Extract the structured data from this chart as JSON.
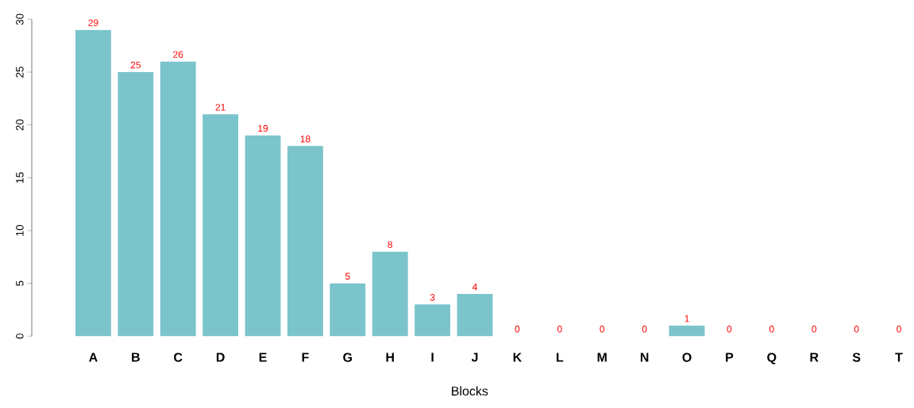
{
  "chart_data": {
    "type": "bar",
    "xlabel": "Blocks",
    "categories": [
      "A",
      "B",
      "C",
      "D",
      "E",
      "F",
      "G",
      "H",
      "I",
      "J",
      "K",
      "L",
      "M",
      "N",
      "O",
      "P",
      "Q",
      "R",
      "S",
      "T"
    ],
    "values": [
      29,
      25,
      26,
      21,
      19,
      18,
      5,
      8,
      3,
      4,
      0,
      0,
      0,
      0,
      1,
      0,
      0,
      0,
      0,
      0
    ],
    "color": "#7bc4cc",
    "ylim": [
      0,
      30
    ],
    "yticks": [
      0,
      5,
      10,
      15,
      20,
      25,
      30
    ],
    "data_labels": true,
    "grid": false
  }
}
